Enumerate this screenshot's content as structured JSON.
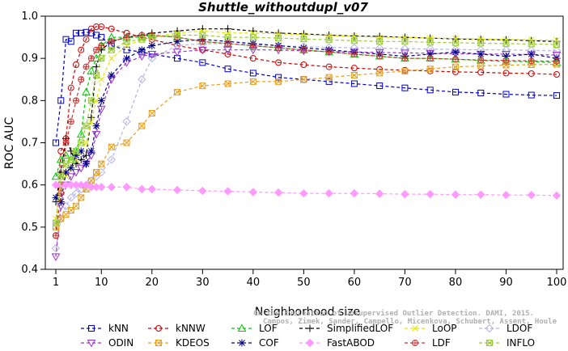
{
  "chart_data": {
    "type": "line",
    "title": "Shuttle_withoutdupl_v07",
    "xlabel": "Neighborhood size",
    "ylabel": "ROC AUC",
    "xlim": [
      1,
      100
    ],
    "ylim": [
      0.4,
      1.0
    ],
    "x_ticks": [
      1,
      10,
      20,
      30,
      40,
      50,
      60,
      70,
      80,
      90,
      100
    ],
    "y_ticks": [
      0.4,
      0.5,
      0.6,
      0.7,
      0.8,
      0.9,
      1.0
    ],
    "grid": false,
    "legend_position": "bottom",
    "x": [
      1,
      2,
      3,
      4,
      5,
      6,
      7,
      8,
      9,
      10,
      12,
      15,
      18,
      20,
      25,
      30,
      35,
      40,
      45,
      50,
      55,
      60,
      65,
      70,
      75,
      80,
      85,
      90,
      95,
      100
    ],
    "series": [
      {
        "name": "kNN",
        "color": "#0000cc",
        "marker": "square",
        "values": [
          0.7,
          0.8,
          0.945,
          0.94,
          0.96,
          0.96,
          0.962,
          0.96,
          0.955,
          0.95,
          0.93,
          0.92,
          0.915,
          0.91,
          0.9,
          0.89,
          0.875,
          0.865,
          0.855,
          0.85,
          0.845,
          0.84,
          0.835,
          0.83,
          0.825,
          0.82,
          0.818,
          0.815,
          0.813,
          0.812
        ]
      },
      {
        "name": "kNNW",
        "color": "#cc0000",
        "marker": "circle",
        "values": [
          0.48,
          0.68,
          0.71,
          0.83,
          0.885,
          0.92,
          0.945,
          0.97,
          0.975,
          0.975,
          0.97,
          0.96,
          0.95,
          0.945,
          0.93,
          0.92,
          0.91,
          0.9,
          0.89,
          0.885,
          0.88,
          0.877,
          0.874,
          0.872,
          0.87,
          0.868,
          0.867,
          0.865,
          0.864,
          0.862
        ]
      },
      {
        "name": "LOF",
        "color": "#00cc00",
        "marker": "triangle",
        "values": [
          0.62,
          0.66,
          0.67,
          0.66,
          0.68,
          0.72,
          0.82,
          0.87,
          0.9,
          0.93,
          0.95,
          0.95,
          0.95,
          0.955,
          0.95,
          0.94,
          0.935,
          0.93,
          0.925,
          0.92,
          0.915,
          0.91,
          0.905,
          0.9,
          0.9,
          0.898,
          0.895,
          0.893,
          0.892,
          0.89
        ]
      },
      {
        "name": "SimplifiedLOF",
        "color": "#000000",
        "marker": "plus",
        "values": [
          0.56,
          0.63,
          0.71,
          0.68,
          0.65,
          0.66,
          0.67,
          0.76,
          0.88,
          0.92,
          0.94,
          0.95,
          0.955,
          0.96,
          0.965,
          0.97,
          0.97,
          0.965,
          0.96,
          0.958,
          0.955,
          0.953,
          0.952,
          0.95,
          0.948,
          0.946,
          0.945,
          0.944,
          0.942,
          0.94
        ]
      },
      {
        "name": "LoOP",
        "color": "#e6e600",
        "marker": "x",
        "values": [
          0.52,
          0.6,
          0.62,
          0.64,
          0.66,
          0.68,
          0.7,
          0.75,
          0.8,
          0.85,
          0.9,
          0.93,
          0.945,
          0.95,
          0.96,
          0.965,
          0.96,
          0.96,
          0.958,
          0.956,
          0.954,
          0.952,
          0.95,
          0.95,
          0.948,
          0.947,
          0.946,
          0.945,
          0.944,
          0.943
        ]
      },
      {
        "name": "LDOF",
        "color": "#b3b3e6",
        "marker": "diamond",
        "values": [
          0.45,
          0.52,
          0.55,
          0.57,
          0.58,
          0.59,
          0.6,
          0.61,
          0.62,
          0.63,
          0.66,
          0.75,
          0.85,
          0.9,
          0.93,
          0.935,
          0.935,
          0.933,
          0.93,
          0.928,
          0.926,
          0.925,
          0.924,
          0.923,
          0.922,
          0.921,
          0.92,
          0.92,
          0.919,
          0.918
        ]
      },
      {
        "name": "ODIN",
        "color": "#9933cc",
        "marker": "triangle-down",
        "values": [
          0.43,
          0.55,
          0.6,
          0.62,
          0.63,
          0.64,
          0.65,
          0.67,
          0.72,
          0.78,
          0.85,
          0.89,
          0.905,
          0.91,
          0.915,
          0.92,
          0.92,
          0.92,
          0.92,
          0.918,
          0.916,
          0.915,
          0.914,
          0.913,
          0.912,
          0.911,
          0.91,
          0.91,
          0.909,
          0.908
        ]
      },
      {
        "name": "KDEOS",
        "color": "#e6a020",
        "marker": "square-x",
        "values": [
          0.5,
          0.52,
          0.53,
          0.54,
          0.55,
          0.57,
          0.59,
          0.61,
          0.63,
          0.65,
          0.69,
          0.7,
          0.74,
          0.77,
          0.82,
          0.835,
          0.84,
          0.845,
          0.845,
          0.85,
          0.855,
          0.86,
          0.865,
          0.87,
          0.875,
          0.88,
          0.882,
          0.884,
          0.885,
          0.886
        ]
      },
      {
        "name": "COF",
        "color": "#000080",
        "marker": "asterisk",
        "values": [
          0.57,
          0.56,
          0.63,
          0.64,
          0.67,
          0.68,
          0.65,
          0.68,
          0.74,
          0.8,
          0.86,
          0.9,
          0.92,
          0.93,
          0.94,
          0.945,
          0.94,
          0.935,
          0.93,
          0.925,
          0.92,
          0.915,
          0.91,
          0.905,
          0.91,
          0.915,
          0.91,
          0.905,
          0.91,
          0.9
        ]
      },
      {
        "name": "FastABOD",
        "color": "#ff99ff",
        "marker": "diamond-filled",
        "values": [
          0.6,
          0.6,
          0.6,
          0.6,
          0.6,
          0.6,
          0.6,
          0.595,
          0.595,
          0.595,
          0.595,
          0.595,
          0.59,
          0.59,
          0.588,
          0.586,
          0.585,
          0.583,
          0.582,
          0.58,
          0.58,
          0.58,
          0.579,
          0.578,
          0.578,
          0.577,
          0.577,
          0.576,
          0.576,
          0.575
        ]
      },
      {
        "name": "LDF",
        "color": "#cc3333",
        "marker": "circle-plus",
        "values": [
          0.48,
          0.58,
          0.7,
          0.75,
          0.8,
          0.85,
          0.88,
          0.9,
          0.92,
          0.93,
          0.94,
          0.95,
          0.955,
          0.955,
          0.95,
          0.94,
          0.935,
          0.93,
          0.925,
          0.92,
          0.915,
          0.91,
          0.905,
          0.9,
          0.9,
          0.898,
          0.896,
          0.895,
          0.894,
          0.893
        ]
      },
      {
        "name": "INFLO",
        "color": "#99cc33",
        "marker": "star-box",
        "values": [
          0.51,
          0.62,
          0.65,
          0.66,
          0.68,
          0.7,
          0.74,
          0.8,
          0.86,
          0.9,
          0.92,
          0.94,
          0.945,
          0.95,
          0.955,
          0.955,
          0.95,
          0.95,
          0.948,
          0.946,
          0.944,
          0.942,
          0.94,
          0.94,
          0.938,
          0.937,
          0.936,
          0.935,
          0.934,
          0.933
        ]
      }
    ]
  },
  "watermark": {
    "line1": "Campos, Zimek, Sander, Campello, Micenkova, Schubert, Assent, Houle",
    "line2": "On the Evaluation of Unsupervised Outlier Detection. DAMI, 2015."
  }
}
